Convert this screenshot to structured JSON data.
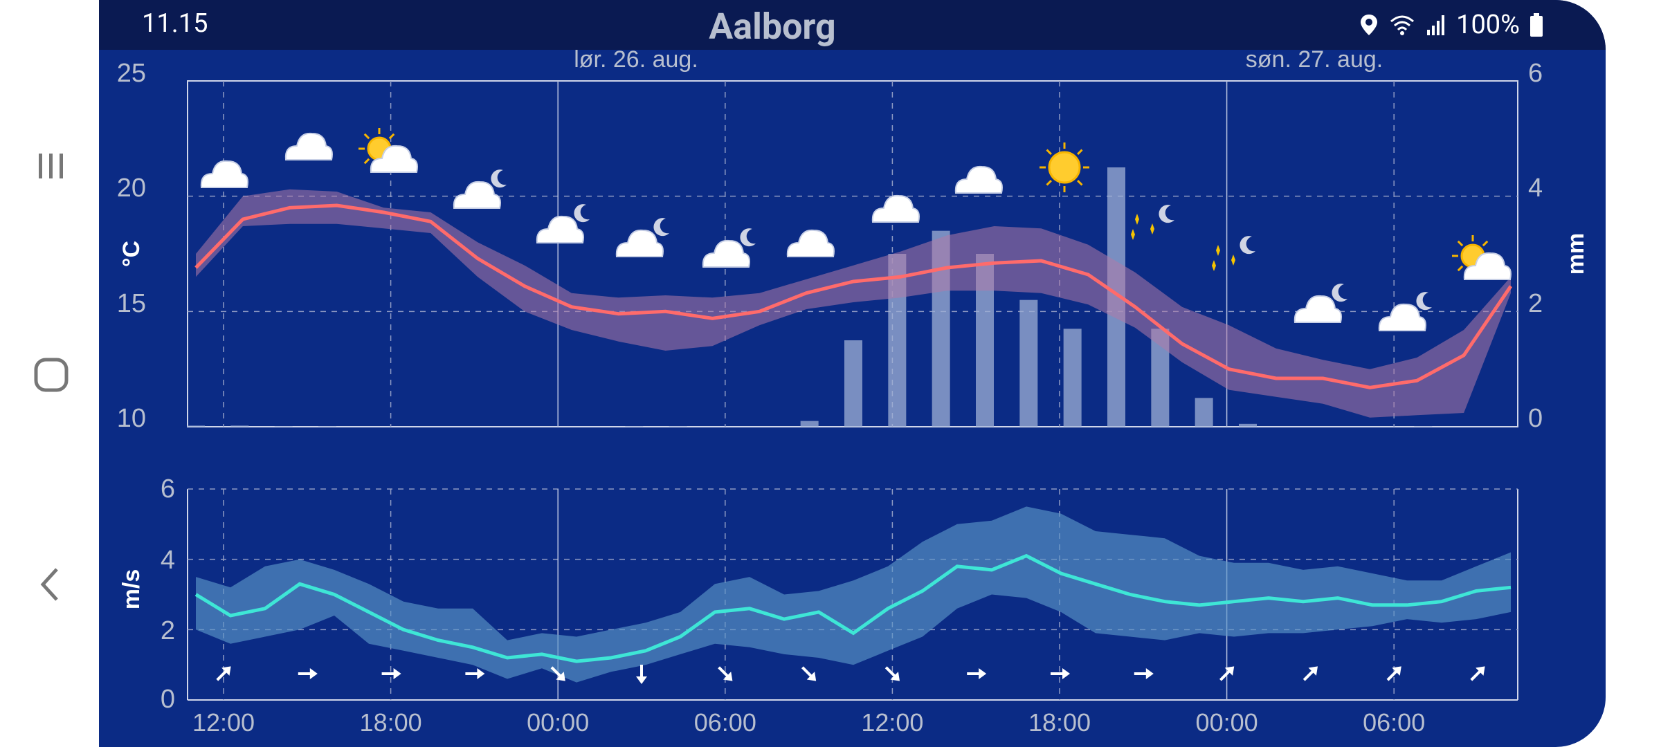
{
  "nav": {
    "recent_icon": "recent-apps-icon",
    "home_icon": "home-icon",
    "back_icon": "back-icon"
  },
  "status": {
    "time": "11.15",
    "title": "Aalborg",
    "battery": "100%",
    "icons": [
      "location-icon",
      "wifi-icon",
      "signal-icon",
      "battery-icon"
    ]
  },
  "top_chart": {
    "dates": [
      "lør. 26. aug.",
      "søn. 27. aug."
    ],
    "y_left_ticks": [
      "25",
      "20",
      "15",
      "10"
    ],
    "y_right_ticks": [
      "6",
      "4",
      "2",
      "0"
    ],
    "y_left_label": "°C",
    "y_right_label": "mm"
  },
  "bottom_chart": {
    "y_ticks": [
      "6",
      "4",
      "2",
      "0"
    ],
    "y_label": "m/s",
    "x_ticks": [
      "12:00",
      "18:00",
      "00:00",
      "06:00",
      "12:00",
      "18:00",
      "00:00",
      "06:00"
    ]
  },
  "colors": {
    "background": "#0b2b85",
    "status_bar": "#0a1a52",
    "temperature_line": "#ff6b6b",
    "temperature_band": "#b07aa8",
    "precip_bars": "#9fb0d6",
    "wind_line": "#3ee6d6",
    "wind_band": "#5a95c8"
  },
  "chart_data": [
    {
      "type": "line",
      "series": [
        {
          "values": [
            16.9,
            19.0,
            19.5,
            19.6,
            19.3,
            18.9,
            17.3,
            16.1,
            15.2,
            14.9,
            15.0,
            14.7,
            15.0,
            15.8,
            16.3,
            16.5,
            16.9,
            17.1,
            17.2,
            16.6,
            15.2,
            13.6,
            12.5,
            12.1,
            12.1,
            11.7,
            12.0,
            13.1,
            16.1
          ],
          "band_low": [
            16.5,
            18.7,
            18.8,
            18.8,
            18.6,
            18.4,
            16.5,
            15.0,
            14.2,
            13.7,
            13.3,
            13.5,
            14.4,
            15.1,
            15.4,
            15.6,
            15.9,
            15.9,
            15.8,
            15.3,
            14.3,
            12.8,
            11.6,
            11.3,
            11.0,
            10.4,
            10.5,
            10.6,
            15.8
          ],
          "band_high": [
            17.5,
            20.0,
            20.3,
            20.2,
            19.5,
            19.3,
            18.0,
            17.0,
            15.8,
            15.6,
            15.7,
            15.6,
            15.8,
            16.4,
            17.0,
            17.6,
            18.3,
            18.7,
            18.6,
            17.9,
            16.7,
            15.2,
            14.4,
            13.4,
            12.9,
            12.5,
            13.0,
            14.2,
            16.5
          ]
        }
      ],
      "ylim": [
        10,
        25
      ],
      "y2lim": [
        0,
        6
      ],
      "precip_bars": [
        0.02,
        0.02,
        0.01,
        0.01,
        0,
        0,
        0,
        0,
        0,
        0,
        0.01,
        0.01,
        0,
        0,
        0.1,
        1.5,
        3.0,
        3.4,
        3.0,
        2.2,
        1.7,
        4.5,
        1.7,
        0.5,
        0.05,
        0,
        0,
        0,
        0.01,
        0,
        0
      ]
    },
    {
      "type": "line",
      "series": [
        {
          "values": [
            3.0,
            2.4,
            2.6,
            3.3,
            3.0,
            2.5,
            2.0,
            1.7,
            1.5,
            1.2,
            1.3,
            1.1,
            1.2,
            1.4,
            1.8,
            2.5,
            2.6,
            2.3,
            2.5,
            1.9,
            2.6,
            3.1,
            3.8,
            3.7,
            4.1,
            3.6,
            3.3,
            3.0,
            2.8,
            2.7,
            2.8,
            2.9,
            2.8,
            2.9,
            2.7,
            2.7,
            2.8,
            3.1,
            3.2
          ],
          "band_low": [
            2.0,
            1.6,
            1.8,
            2.0,
            2.4,
            1.6,
            1.4,
            1.2,
            1.0,
            0.6,
            0.9,
            0.5,
            0.8,
            1.0,
            1.3,
            1.6,
            1.5,
            1.3,
            1.2,
            1.0,
            1.4,
            1.8,
            2.6,
            3.0,
            2.9,
            2.5,
            1.9,
            1.8,
            1.7,
            1.9,
            1.8,
            1.9,
            1.9,
            2.0,
            2.1,
            2.3,
            2.2,
            2.3,
            2.5
          ],
          "band_high": [
            3.5,
            3.2,
            3.8,
            4.0,
            3.7,
            3.3,
            2.8,
            2.6,
            2.6,
            1.7,
            1.9,
            1.8,
            2.0,
            2.2,
            2.5,
            3.3,
            3.5,
            3.0,
            3.1,
            3.4,
            3.8,
            4.5,
            5.0,
            5.1,
            5.5,
            5.3,
            4.8,
            4.7,
            4.6,
            4.1,
            3.9,
            3.9,
            3.7,
            3.8,
            3.6,
            3.4,
            3.4,
            3.8,
            4.2
          ]
        }
      ],
      "ylim": [
        0,
        6
      ],
      "xticks": [
        "12:00",
        "18:00",
        "00:00",
        "06:00",
        "12:00",
        "18:00",
        "00:00",
        "06:00"
      ]
    }
  ]
}
